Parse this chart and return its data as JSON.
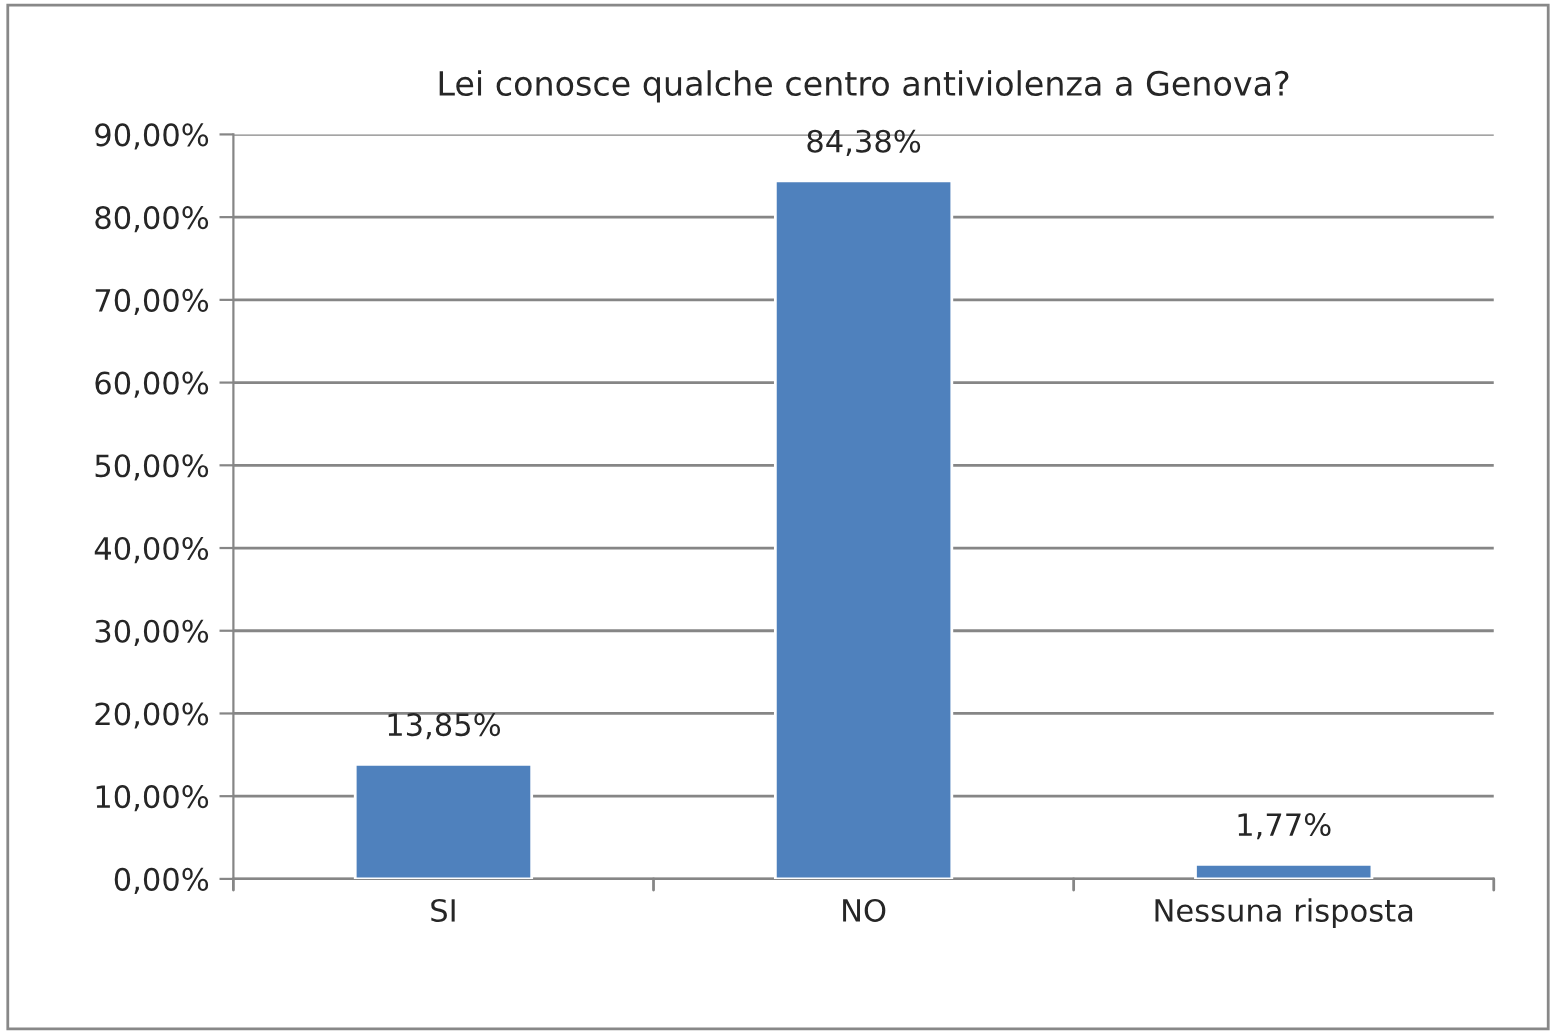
{
  "chart_data": {
    "type": "bar",
    "title": "Lei conosce qualche centro antiviolenza a Genova?",
    "categories": [
      "SI",
      "NO",
      "Nessuna risposta"
    ],
    "values": [
      13.85,
      84.38,
      1.77
    ],
    "value_labels": [
      "13,85%",
      "84,38%",
      "1,77%"
    ],
    "color": "#4f81bd",
    "ylim": [
      0,
      90
    ],
    "yticks": [
      {
        "value": 0,
        "label": "0,00%"
      },
      {
        "value": 10,
        "label": "10,00%"
      },
      {
        "value": 20,
        "label": "20,00%"
      },
      {
        "value": 30,
        "label": "30,00%"
      },
      {
        "value": 40,
        "label": "40,00%"
      },
      {
        "value": 50,
        "label": "50,00%"
      },
      {
        "value": 60,
        "label": "60,00%"
      },
      {
        "value": 70,
        "label": "70,00%"
      },
      {
        "value": 80,
        "label": "80,00%"
      },
      {
        "value": 90,
        "label": "90,00%"
      }
    ],
    "grid": "y",
    "legend": false
  }
}
